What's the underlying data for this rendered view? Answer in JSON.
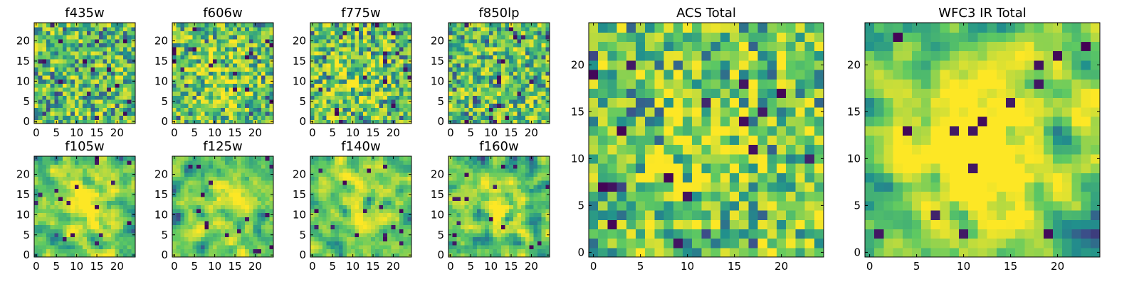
{
  "colormap": {
    "name": "viridis",
    "stops": [
      "#440154",
      "#3b528b",
      "#21918c",
      "#5ec962",
      "#fde725"
    ]
  },
  "chart_data": [
    {
      "type": "heatmap",
      "title": "f435w",
      "grid_size": [
        25,
        25
      ],
      "xticks": [
        0,
        5,
        10,
        15,
        20
      ],
      "yticks": [
        0,
        5,
        10,
        15,
        20
      ],
      "xlim": [
        0,
        24
      ],
      "ylim": [
        0,
        24
      ],
      "seed": 435,
      "blob": null,
      "smooth": 0
    },
    {
      "type": "heatmap",
      "title": "f606w",
      "grid_size": [
        25,
        25
      ],
      "xticks": [
        0,
        5,
        10,
        15,
        20
      ],
      "yticks": [
        0,
        5,
        10,
        15,
        20
      ],
      "xlim": [
        0,
        24
      ],
      "ylim": [
        0,
        24
      ],
      "seed": 606,
      "blob": {
        "x": 12,
        "y": 12,
        "r": 5,
        "amp": 0.12
      },
      "smooth": 0
    },
    {
      "type": "heatmap",
      "title": "f775w",
      "grid_size": [
        25,
        25
      ],
      "xticks": [
        0,
        5,
        10,
        15,
        20
      ],
      "yticks": [
        0,
        5,
        10,
        15,
        20
      ],
      "xlim": [
        0,
        24
      ],
      "ylim": [
        0,
        24
      ],
      "seed": 775,
      "blob": {
        "x": 12,
        "y": 13,
        "r": 5,
        "amp": 0.12
      },
      "smooth": 0
    },
    {
      "type": "heatmap",
      "title": "f850lp",
      "grid_size": [
        25,
        25
      ],
      "xticks": [
        0,
        5,
        10,
        15,
        20
      ],
      "yticks": [
        0,
        5,
        10,
        15,
        20
      ],
      "xlim": [
        0,
        24
      ],
      "ylim": [
        0,
        24
      ],
      "seed": 850,
      "blob": null,
      "smooth": 0
    },
    {
      "type": "heatmap",
      "title": "f105w",
      "grid_size": [
        25,
        25
      ],
      "xticks": [
        0,
        5,
        10,
        15,
        20
      ],
      "yticks": [
        0,
        5,
        10,
        15,
        20
      ],
      "xlim": [
        0,
        24
      ],
      "ylim": [
        0,
        24
      ],
      "seed": 105,
      "blob": {
        "x": 13,
        "y": 12,
        "r": 6,
        "amp": 0.25
      },
      "smooth": 1
    },
    {
      "type": "heatmap",
      "title": "f125w",
      "grid_size": [
        25,
        25
      ],
      "xticks": [
        0,
        5,
        10,
        15,
        20
      ],
      "yticks": [
        0,
        5,
        10,
        15,
        20
      ],
      "xlim": [
        0,
        24
      ],
      "ylim": [
        0,
        24
      ],
      "seed": 125,
      "blob": {
        "x": 12,
        "y": 12,
        "r": 6,
        "amp": 0.2
      },
      "smooth": 1
    },
    {
      "type": "heatmap",
      "title": "f140w",
      "grid_size": [
        25,
        25
      ],
      "xticks": [
        0,
        5,
        10,
        15,
        20
      ],
      "yticks": [
        0,
        5,
        10,
        15,
        20
      ],
      "xlim": [
        0,
        24
      ],
      "ylim": [
        0,
        24
      ],
      "seed": 140,
      "blob": {
        "x": 13,
        "y": 13,
        "r": 6,
        "amp": 0.2
      },
      "smooth": 1
    },
    {
      "type": "heatmap",
      "title": "f160w",
      "grid_size": [
        25,
        25
      ],
      "xticks": [
        0,
        5,
        10,
        15,
        20
      ],
      "yticks": [
        0,
        5,
        10,
        15,
        20
      ],
      "xlim": [
        0,
        24
      ],
      "ylim": [
        0,
        24
      ],
      "seed": 160,
      "blob": {
        "x": 13,
        "y": 12,
        "r": 5,
        "amp": 0.3
      },
      "smooth": 1
    },
    {
      "type": "heatmap",
      "title": "ACS Total",
      "grid_size": [
        25,
        25
      ],
      "xticks": [
        0,
        5,
        10,
        15,
        20
      ],
      "yticks": [
        0,
        5,
        10,
        15,
        20
      ],
      "xlim": [
        0,
        24
      ],
      "ylim": [
        0,
        24
      ],
      "seed": 1001,
      "blob": {
        "x": 12,
        "y": 11,
        "r": 6,
        "amp": 0.12
      },
      "smooth": 0
    },
    {
      "type": "heatmap",
      "title": "WFC3 IR Total",
      "grid_size": [
        25,
        25
      ],
      "xticks": [
        0,
        5,
        10,
        15,
        20
      ],
      "yticks": [
        0,
        5,
        10,
        15,
        20
      ],
      "xlim": [
        0,
        24
      ],
      "ylim": [
        0,
        24
      ],
      "seed": 2002,
      "blob": {
        "x": 12,
        "y": 11,
        "r": 5,
        "amp": 0.4
      },
      "smooth": 1
    }
  ]
}
